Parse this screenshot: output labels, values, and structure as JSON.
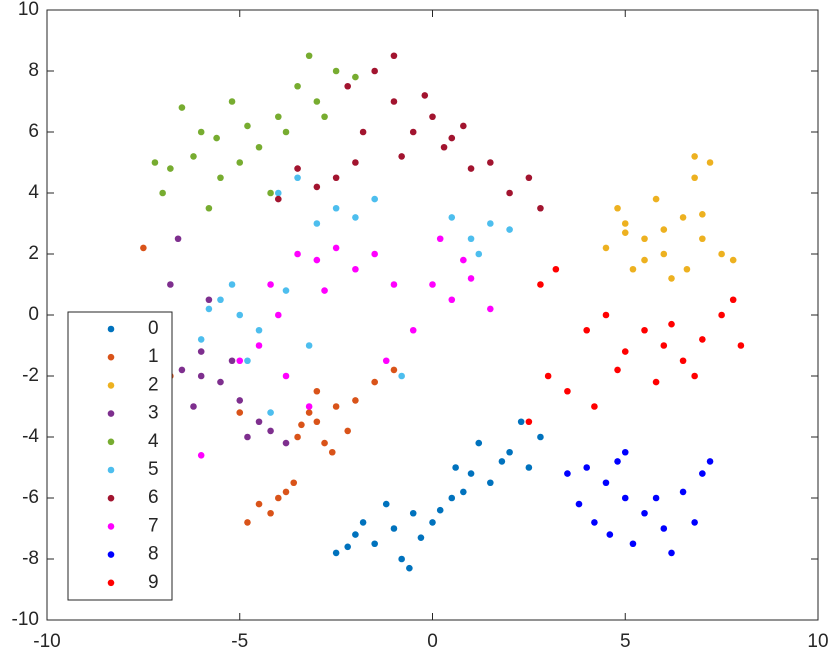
{
  "chart_data": {
    "type": "scatter",
    "xlim": [
      -10,
      10
    ],
    "xticks": [
      -10,
      -5,
      0,
      5,
      10
    ],
    "ylim": [
      -10,
      10
    ],
    "yticks": [
      -10,
      -8,
      -6,
      -4,
      -2,
      0,
      2,
      4,
      6,
      8,
      10
    ],
    "grid": false,
    "legend": "lower left",
    "series": [
      {
        "name": "0",
        "color": "#0072BD",
        "x": [
          -1,
          -0.5,
          -1.5,
          -2,
          -0.8,
          0,
          -1.2,
          -2.5,
          -0.3,
          0.5,
          1,
          1.5,
          0.8,
          2,
          2.3,
          1.8,
          2.5,
          0.2,
          -1.8,
          -0.6,
          1.2,
          2.8,
          0.6,
          -2.2
        ],
        "y": [
          -7,
          -6.5,
          -7.5,
          -7.2,
          -8,
          -6.8,
          -6.2,
          -7.8,
          -7.3,
          -6,
          -5.2,
          -5.5,
          -5.8,
          -4.5,
          -3.5,
          -4.8,
          -5,
          -6.4,
          -6.8,
          -8.3,
          -4.2,
          -4,
          -5,
          -7.6
        ]
      },
      {
        "name": "1",
        "color": "#D95319",
        "x": [
          -3,
          -2.5,
          -3.5,
          -2.8,
          -3.2,
          -2.2,
          -4,
          -3.8,
          -4.2,
          -4.5,
          -3.6,
          -2,
          -6.8,
          -7.2,
          -1.5,
          -3,
          -2.6,
          -5,
          -4.8,
          -7.5,
          -1,
          -3.4
        ],
        "y": [
          -3.5,
          -3,
          -4,
          -4.2,
          -3.2,
          -3.8,
          -6,
          -5.8,
          -6.5,
          -6.2,
          -5.5,
          -2.8,
          -2,
          -1.5,
          -2.2,
          -2.5,
          -4.5,
          -3.2,
          -6.8,
          2.2,
          -1.8,
          -3.6
        ]
      },
      {
        "name": "2",
        "color": "#EDB120",
        "x": [
          5,
          5.5,
          6,
          6.5,
          7,
          5.2,
          6.2,
          7.5,
          5.8,
          4.5,
          6.8,
          7.2,
          5.5,
          6,
          4.8,
          7.8,
          6.6,
          6.8,
          5,
          7
        ],
        "y": [
          3,
          2.5,
          2,
          3.2,
          2.5,
          1.5,
          1.2,
          2,
          3.8,
          2.2,
          4.5,
          5,
          1.8,
          2.8,
          3.5,
          1.8,
          1.5,
          5.2,
          2.7,
          3.3
        ]
      },
      {
        "name": "3",
        "color": "#7E2F8E",
        "x": [
          -6,
          -6.5,
          -5.5,
          -7,
          -6.8,
          -5.8,
          -7.2,
          -4.5,
          -4.8,
          -6.2,
          -7.5,
          -5.2,
          -6.6,
          -4.2,
          -7.8,
          -5,
          -6,
          -3.8
        ],
        "y": [
          -2,
          -1.8,
          -2.2,
          -2.5,
          1,
          0.5,
          -1,
          -3.5,
          -4,
          -3,
          -0.5,
          -1.5,
          2.5,
          -3.8,
          -2.8,
          -2.8,
          -1.2,
          -4.2
        ]
      },
      {
        "name": "4",
        "color": "#77AC30",
        "x": [
          -5,
          -6,
          -4.5,
          -3,
          -2.5,
          -5.5,
          -6.5,
          -7,
          -4,
          -3.5,
          -5.8,
          -6.2,
          -2,
          -4.8,
          -7.2,
          -5.2,
          -3.8,
          -6.8,
          -2.8,
          -4.2,
          -5.6,
          -3.2
        ],
        "y": [
          5,
          6,
          5.5,
          7,
          8,
          4.5,
          6.8,
          4,
          6.5,
          7.5,
          3.5,
          5.2,
          7.8,
          6.2,
          5,
          7,
          6,
          4.8,
          6.5,
          4,
          5.8,
          8.5
        ]
      },
      {
        "name": "5",
        "color": "#4DBEEE",
        "x": [
          -5,
          -4.5,
          -5.5,
          -3,
          -2.5,
          1,
          1.5,
          -4,
          -3.5,
          -6,
          -4.8,
          0.5,
          2,
          -2,
          -5.2,
          -3.2,
          1.2,
          -1.5,
          -4.2,
          -0.8,
          -5.8,
          -3.8
        ],
        "y": [
          0,
          -0.5,
          0.5,
          3,
          3.5,
          2.5,
          3,
          4,
          4.5,
          -0.8,
          -1.5,
          3.2,
          2.8,
          3.2,
          1,
          -1,
          2,
          3.8,
          -3.2,
          -2,
          0.2,
          0.8
        ]
      },
      {
        "name": "6",
        "color": "#A2142F",
        "x": [
          -0.5,
          0,
          0.5,
          -1,
          -2,
          -2.5,
          -1.5,
          -1,
          2,
          2.5,
          1.5,
          -0.2,
          0.8,
          -3,
          -3.5,
          -1.8,
          -2.2,
          0.3,
          2.8,
          -0.8,
          -4,
          1
        ],
        "y": [
          6,
          6.5,
          5.8,
          7,
          5,
          4.5,
          8,
          8.5,
          4,
          4.5,
          5,
          7.2,
          6.2,
          4.2,
          4.8,
          6,
          7.5,
          5.5,
          3.5,
          5.2,
          3.8,
          4.8
        ]
      },
      {
        "name": "7",
        "color": "#FF00FF",
        "x": [
          -2,
          -3,
          -1,
          0,
          1,
          -4,
          -3.5,
          -2.5,
          0.5,
          -1.5,
          -4.5,
          -2.8,
          0.8,
          1.5,
          -0.5,
          -3.8,
          -5,
          -3.2,
          -1.2,
          0.2,
          -6,
          -4.2
        ],
        "y": [
          1.5,
          1.8,
          1,
          1,
          1.2,
          0,
          2,
          2.2,
          0.5,
          2,
          -1,
          0.8,
          1.8,
          0.2,
          -0.5,
          -2,
          -1.5,
          -3,
          -1.5,
          2.5,
          -4.6,
          1
        ]
      },
      {
        "name": "8",
        "color": "#0000FF",
        "x": [
          5,
          4.5,
          6,
          5.5,
          4,
          6.5,
          5.2,
          4.8,
          3.5,
          7,
          6.8,
          5.8,
          4.2,
          6.2,
          5,
          3.8,
          7.2,
          4.6
        ],
        "y": [
          -6,
          -5.5,
          -7,
          -6.5,
          -5,
          -5.8,
          -7.5,
          -4.8,
          -5.2,
          -5.2,
          -6.8,
          -6,
          -6.8,
          -7.8,
          -4.5,
          -6.2,
          -4.8,
          -7.2
        ]
      },
      {
        "name": "9",
        "color": "#FF0000",
        "x": [
          6,
          5.5,
          6.5,
          7,
          4,
          4.5,
          3,
          3.5,
          8,
          7.5,
          5,
          6.8,
          5.8,
          3.2,
          2.5,
          4.2,
          7.8,
          6.2,
          2.8,
          4.8
        ],
        "y": [
          -1,
          -0.5,
          -1.5,
          -0.8,
          -0.5,
          0,
          -2,
          -2.5,
          -1,
          0,
          -1.2,
          -2,
          -2.2,
          1.5,
          -3.5,
          -3,
          0.5,
          -0.3,
          1,
          -1.8
        ]
      }
    ]
  }
}
